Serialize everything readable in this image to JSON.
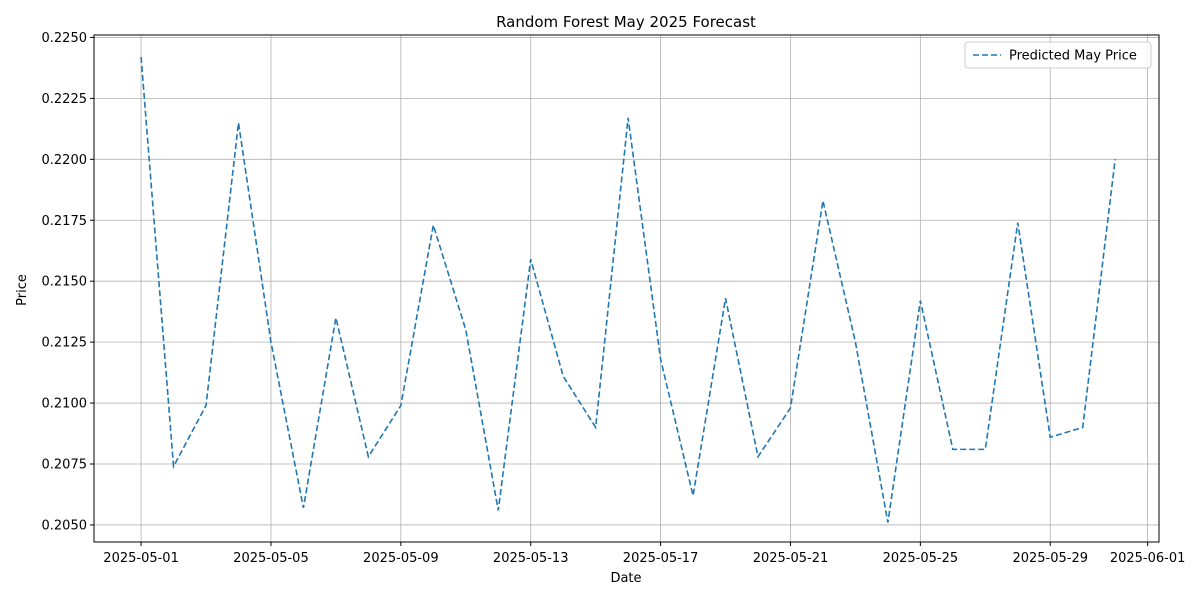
{
  "chart_data": {
    "type": "line",
    "title": "Random Forest May 2025 Forecast",
    "xlabel": "Date",
    "ylabel": "Price",
    "grid": true,
    "legend_position": "top-right",
    "xlim": [
      "2025-04-29",
      "2025-06-01"
    ],
    "ylim": [
      0.2043,
      0.2251
    ],
    "x_ticks": [
      "2025-05-01",
      "2025-05-05",
      "2025-05-09",
      "2025-05-13",
      "2025-05-17",
      "2025-05-21",
      "2025-05-25",
      "2025-05-29",
      "2025-06-01"
    ],
    "y_ticks": [
      "0.2050",
      "0.2075",
      "0.2100",
      "0.2125",
      "0.2150",
      "0.2175",
      "0.2200",
      "0.2225",
      "0.2250"
    ],
    "series": [
      {
        "name": "Predicted May Price",
        "color": "#1f77b4",
        "line_style": "dashed",
        "x": [
          "2025-05-01",
          "2025-05-02",
          "2025-05-03",
          "2025-05-04",
          "2025-05-05",
          "2025-05-06",
          "2025-05-07",
          "2025-05-08",
          "2025-05-09",
          "2025-05-10",
          "2025-05-11",
          "2025-05-12",
          "2025-05-13",
          "2025-05-14",
          "2025-05-15",
          "2025-05-16",
          "2025-05-17",
          "2025-05-18",
          "2025-05-19",
          "2025-05-20",
          "2025-05-21",
          "2025-05-22",
          "2025-05-23",
          "2025-05-24",
          "2025-05-25",
          "2025-05-26",
          "2025-05-27",
          "2025-05-28",
          "2025-05-29",
          "2025-05-30",
          "2025-05-31"
        ],
        "y": [
          0.2242,
          0.2074,
          0.2099,
          0.2215,
          0.2125,
          0.2057,
          0.2135,
          0.2078,
          0.2099,
          0.2173,
          0.213,
          0.2056,
          0.2159,
          0.2111,
          0.209,
          0.2217,
          0.2118,
          0.2062,
          0.2143,
          0.2078,
          0.2098,
          0.2183,
          0.2125,
          0.2051,
          0.2142,
          0.2081,
          0.2081,
          0.2174,
          0.2086,
          0.209,
          0.22
        ]
      }
    ]
  }
}
